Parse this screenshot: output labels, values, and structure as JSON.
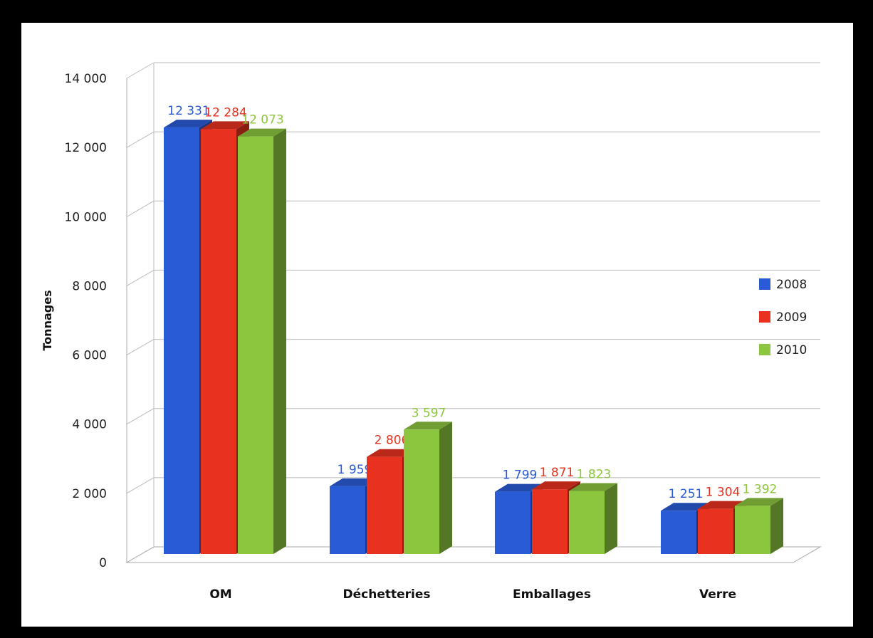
{
  "chart_data": {
    "type": "bar",
    "ylabel": "Tonnages",
    "xlabel": "",
    "ylim": [
      0,
      14000
    ],
    "yticks": [
      0,
      2000,
      4000,
      6000,
      8000,
      10000,
      12000,
      14000
    ],
    "ytick_labels": [
      "0",
      "2 000",
      "4 000",
      "6 000",
      "8 000",
      "10 000",
      "12 000",
      "14 000"
    ],
    "categories": [
      "OM",
      "Déchetteries",
      "Emballages",
      "Verre"
    ],
    "series": [
      {
        "name": "2008",
        "color": "#2a5bd7",
        "values": [
          12331,
          1959,
          1799,
          1251
        ],
        "labels": [
          "12 331",
          "1 959",
          "1 799",
          "1 251"
        ]
      },
      {
        "name": "2009",
        "color": "#e8321f",
        "values": [
          12284,
          2806,
          1871,
          1304
        ],
        "labels": [
          "12 284",
          "2 806",
          "1 871",
          "1 304"
        ]
      },
      {
        "name": "2010",
        "color": "#8cc63e",
        "values": [
          12073,
          3597,
          1823,
          1392
        ],
        "labels": [
          "12 073",
          "3 597",
          "1 823",
          "1 392"
        ]
      }
    ],
    "grid": true,
    "legend": "right",
    "style": "3d-clustered-column"
  }
}
